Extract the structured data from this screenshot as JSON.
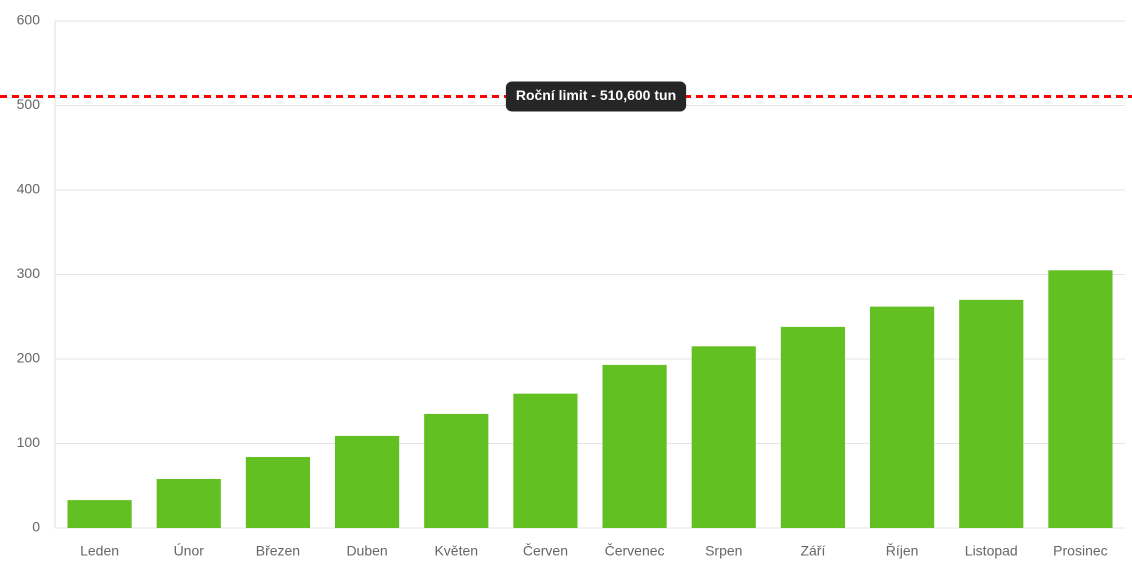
{
  "chart_data": {
    "type": "bar",
    "categories": [
      "Leden",
      "Únor",
      "Březen",
      "Duben",
      "Květen",
      "Červen",
      "Červenec",
      "Srpen",
      "Září",
      "Říjen",
      "Listopad",
      "Prosinec"
    ],
    "values": [
      33,
      58,
      84,
      109,
      135,
      159,
      193,
      215,
      238,
      262,
      270,
      305
    ],
    "color": "#62c022",
    "ylim": [
      0,
      600
    ],
    "yticks": [
      0,
      100,
      200,
      300,
      400,
      500,
      600
    ],
    "grid": true,
    "annotations": [
      {
        "label": "Roční limit - 510,600 tun",
        "value": 510.6,
        "color": "#ff0000"
      }
    ]
  }
}
